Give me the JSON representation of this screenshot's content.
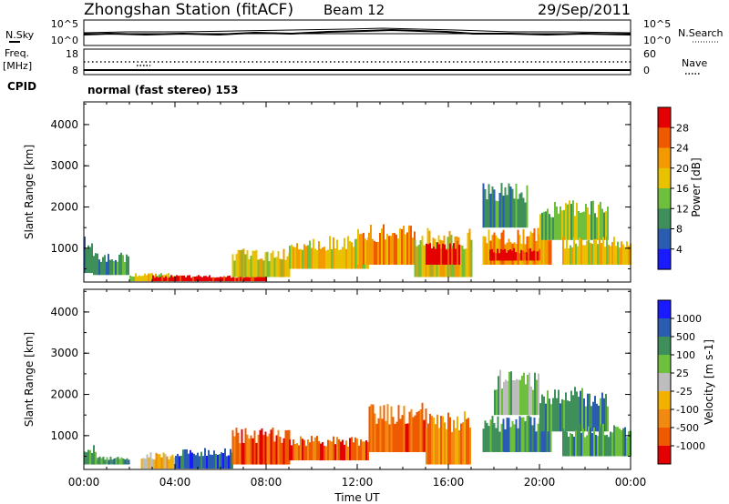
{
  "header": {
    "station": "Zhongshan Station (fitACF)",
    "beam": "Beam 12",
    "date": "29/Sep/2011"
  },
  "noise_panel": {
    "left_label": "N.Sky",
    "right_label": "N.Search",
    "left_ticks": [
      "10^5",
      "10^0"
    ],
    "right_ticks": [
      "10^5",
      "10^0"
    ]
  },
  "freq_panel": {
    "left_label_line1": "Freq.",
    "left_label_line2": "[MHz]",
    "right_label": "Nave",
    "left_ticks": [
      "18",
      "8"
    ],
    "right_ticks": [
      "60",
      "0"
    ],
    "cpid_label": "CPID",
    "cpid_text": "normal (fast stereo) 153"
  },
  "colors": {
    "power_scale": [
      "#1a1aff",
      "#2a5cb0",
      "#3e8f5a",
      "#6fbf3f",
      "#e8c200",
      "#f29a00",
      "#ef5a00",
      "#e40000"
    ],
    "velocity_scale": [
      "#e40000",
      "#ef5a00",
      "#f08a10",
      "#f2b000",
      "#bdbdbd",
      "#6fbf3f",
      "#3e8f5a",
      "#2a5cb0",
      "#1a1aff"
    ]
  },
  "chart_data": [
    {
      "type": "heatmap",
      "name": "power",
      "xlabel": "Time UT",
      "ylabel": "Slant Range [km]",
      "x_tick_labels": [
        "00:00",
        "04:00",
        "08:00",
        "12:00",
        "16:00",
        "20:00",
        "00:00"
      ],
      "xlim_hours": [
        0,
        24
      ],
      "ylim_km": [
        180,
        4550
      ],
      "y_ticks": [
        1000,
        2000,
        3000,
        4000
      ],
      "colorbar_label": "Power [dB]",
      "colorbar_ticks": [
        "4",
        "8",
        "12",
        "16",
        "20",
        "24",
        "28"
      ],
      "regions_hours_km": [
        {
          "t": [
            0.0,
            0.4
          ],
          "r": [
            400,
            1300
          ],
          "level": 2
        },
        {
          "t": [
            0.4,
            2.0
          ],
          "r": [
            350,
            900
          ],
          "level": 2
        },
        {
          "t": [
            2.0,
            4.0
          ],
          "r": [
            200,
            400
          ],
          "level": 4
        },
        {
          "t": [
            3.0,
            8.0
          ],
          "r": [
            200,
            350
          ],
          "level": 7
        },
        {
          "t": [
            6.5,
            9.0
          ],
          "r": [
            300,
            1000
          ],
          "level": 4
        },
        {
          "t": [
            9.0,
            12.5
          ],
          "r": [
            500,
            1300
          ],
          "level": 4
        },
        {
          "t": [
            12.0,
            14.5
          ],
          "r": [
            600,
            1600
          ],
          "level": 5
        },
        {
          "t": [
            14.5,
            17.0
          ],
          "r": [
            300,
            1500
          ],
          "level": 4
        },
        {
          "t": [
            15.0,
            16.5
          ],
          "r": [
            600,
            1200
          ],
          "level": 7
        },
        {
          "t": [
            17.5,
            20.5
          ],
          "r": [
            600,
            1500
          ],
          "level": 5
        },
        {
          "t": [
            17.8,
            20.0
          ],
          "r": [
            700,
            1000
          ],
          "level": 7
        },
        {
          "t": [
            17.5,
            19.5
          ],
          "r": [
            1500,
            2600
          ],
          "level": 2
        },
        {
          "t": [
            20.0,
            23.0
          ],
          "r": [
            1200,
            2200
          ],
          "level": 3
        },
        {
          "t": [
            21.0,
            24.0
          ],
          "r": [
            600,
            1300
          ],
          "level": 4
        }
      ]
    },
    {
      "type": "heatmap",
      "name": "velocity",
      "xlabel": "Time UT",
      "ylabel": "Slant Range [km]",
      "x_tick_labels": [
        "00:00",
        "04:00",
        "08:00",
        "12:00",
        "16:00",
        "20:00",
        "00:00"
      ],
      "xlim_hours": [
        0,
        24
      ],
      "ylim_km": [
        180,
        4550
      ],
      "y_ticks": [
        1000,
        2000,
        3000,
        4000
      ],
      "colorbar_label": "Velocity [m s-1]",
      "colorbar_ticks": [
        "1000",
        "500",
        "100",
        "25",
        "-25",
        "-100",
        "-500",
        "-1000"
      ],
      "regions_hours_km": [
        {
          "t": [
            0.0,
            0.5
          ],
          "r": [
            300,
            800
          ],
          "level": 6
        },
        {
          "t": [
            0.5,
            2.0
          ],
          "r": [
            300,
            500
          ],
          "level": 6
        },
        {
          "t": [
            2.5,
            4.0
          ],
          "r": [
            200,
            600
          ],
          "level": 3
        },
        {
          "t": [
            4.0,
            6.5
          ],
          "r": [
            200,
            700
          ],
          "level": 7
        },
        {
          "t": [
            6.5,
            9.0
          ],
          "r": [
            300,
            1200
          ],
          "level": 1
        },
        {
          "t": [
            9.0,
            12.5
          ],
          "r": [
            400,
            1000
          ],
          "level": 1
        },
        {
          "t": [
            12.5,
            15.0
          ],
          "r": [
            600,
            1800
          ],
          "level": 1
        },
        {
          "t": [
            15.0,
            17.0
          ],
          "r": [
            300,
            1600
          ],
          "level": 2
        },
        {
          "t": [
            17.5,
            20.5
          ],
          "r": [
            600,
            1500
          ],
          "level": 6
        },
        {
          "t": [
            18.0,
            20.0
          ],
          "r": [
            1500,
            2600
          ],
          "level": 5
        },
        {
          "t": [
            20.0,
            23.0
          ],
          "r": [
            1100,
            2200
          ],
          "level": 6
        },
        {
          "t": [
            21.0,
            24.0
          ],
          "r": [
            500,
            1300
          ],
          "level": 6
        }
      ]
    }
  ]
}
